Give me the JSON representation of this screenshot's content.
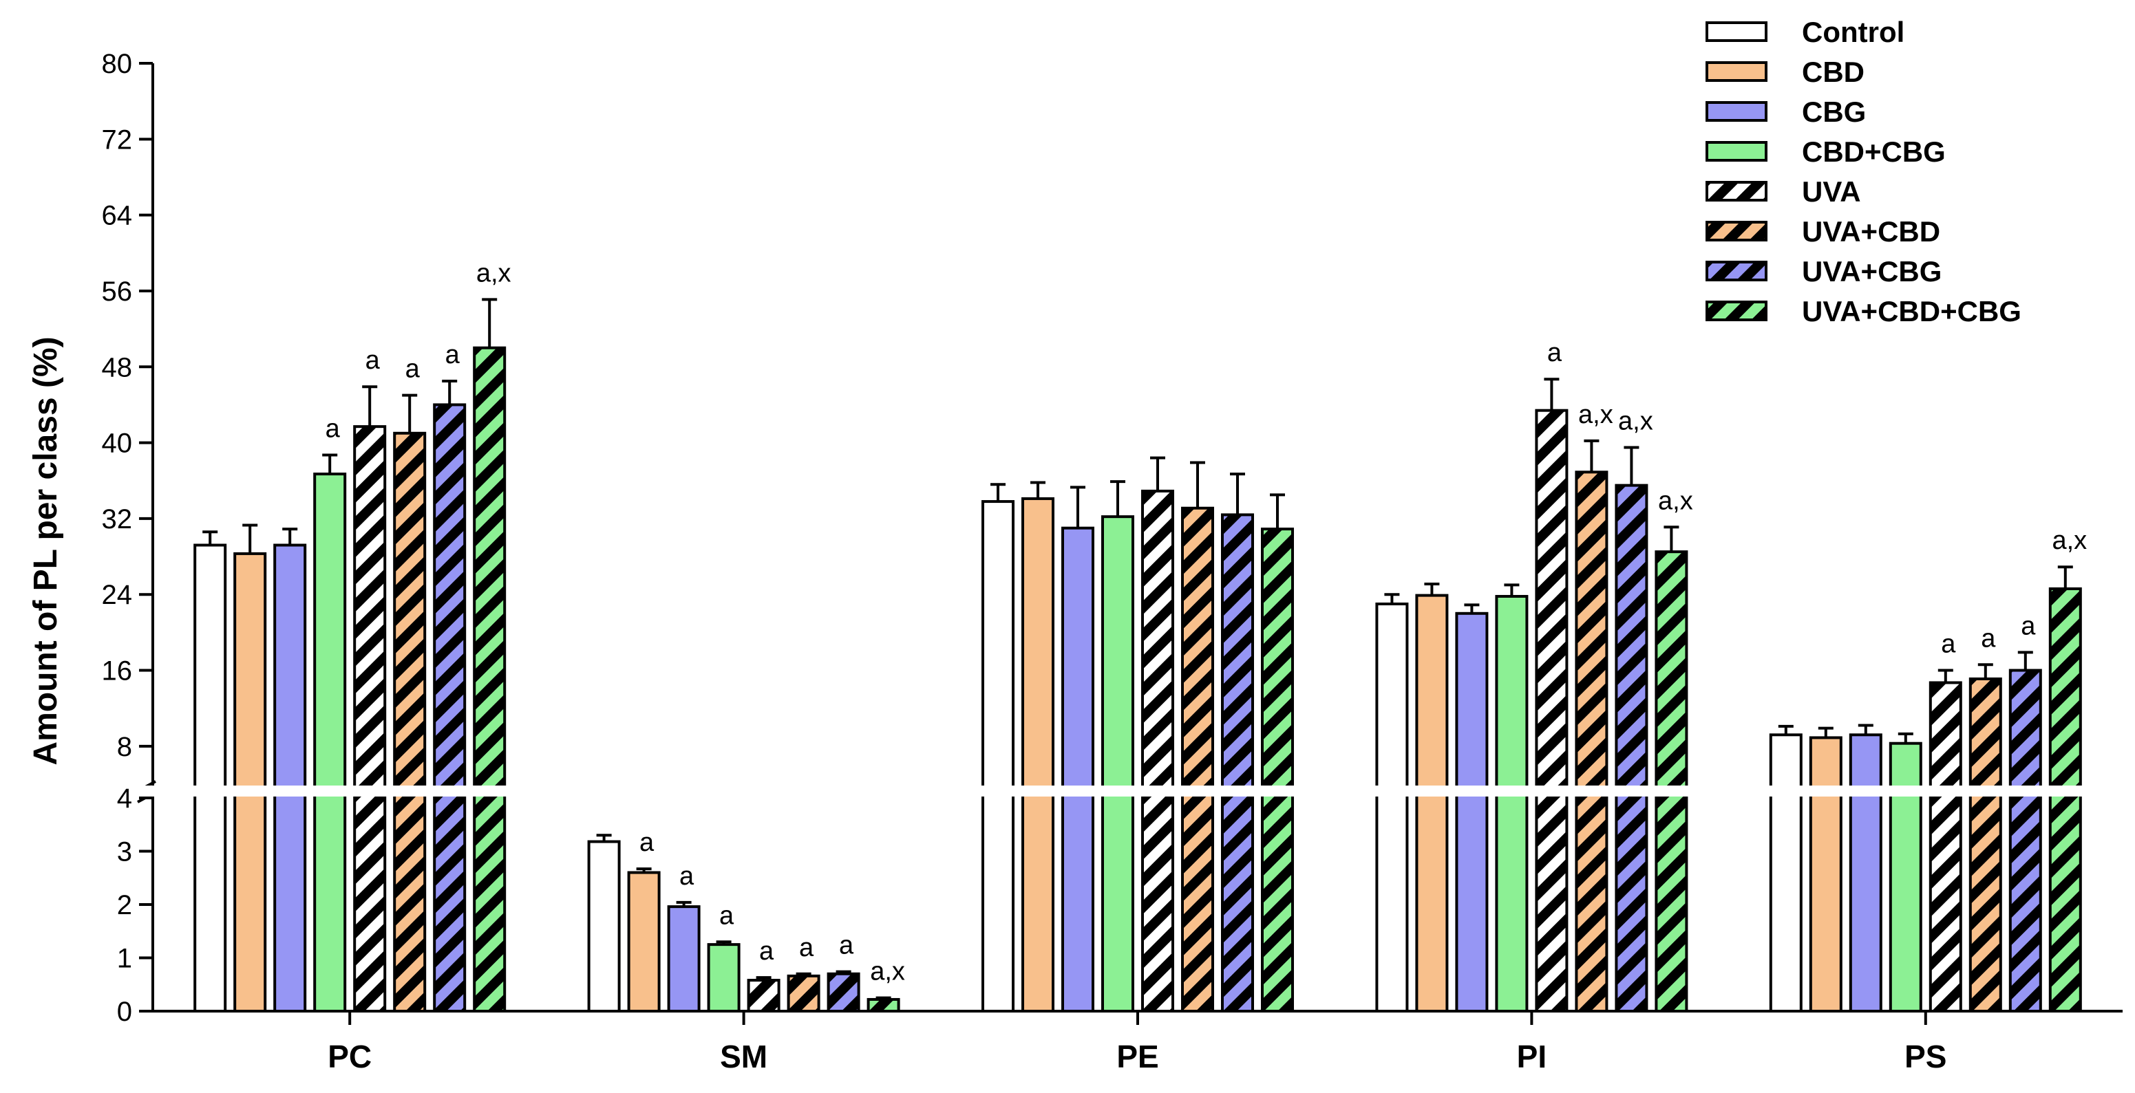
{
  "chart_data": {
    "type": "bar",
    "ylabel": "Amount of PL per class (%)",
    "xlabel": "",
    "title": "",
    "categories": [
      "PC",
      "SM",
      "PE",
      "PI",
      "PS"
    ],
    "axis": {
      "broken": true,
      "lower_range": [
        0,
        4
      ],
      "upper_range": [
        4,
        80
      ],
      "lower_ticks": [
        "0",
        "1",
        "2",
        "3",
        "4"
      ],
      "upper_ticks": [
        "8",
        "16",
        "24",
        "32",
        "40",
        "48",
        "56",
        "64",
        "72",
        "80"
      ]
    },
    "legend_position": "top-right",
    "series": [
      {
        "name": "Control",
        "color": "#FFFFFF",
        "hatched": false,
        "values": [
          29.2,
          3.18,
          33.8,
          23.0,
          9.2
        ],
        "errors": [
          1.4,
          0.12,
          1.8,
          1.0,
          0.9
        ],
        "labels": [
          "",
          "",
          "",
          "",
          ""
        ]
      },
      {
        "name": "CBD",
        "color": "#F8C08C",
        "hatched": false,
        "values": [
          28.3,
          2.6,
          34.1,
          23.9,
          8.9
        ],
        "errors": [
          3.0,
          0.07,
          1.7,
          1.2,
          1.0
        ],
        "labels": [
          "",
          "a",
          "",
          "",
          ""
        ]
      },
      {
        "name": "CBG",
        "color": "#9696F4",
        "hatched": false,
        "values": [
          29.2,
          1.96,
          31.0,
          22.0,
          9.2
        ],
        "errors": [
          1.7,
          0.08,
          4.3,
          0.9,
          1.0
        ],
        "labels": [
          "",
          "a",
          "",
          "",
          ""
        ]
      },
      {
        "name": "CBD+CBG",
        "color": "#8CF094",
        "hatched": false,
        "values": [
          36.7,
          1.25,
          32.2,
          23.8,
          8.3
        ],
        "errors": [
          2.0,
          0.05,
          3.7,
          1.2,
          1.0
        ],
        "labels": [
          "a",
          "a",
          "",
          "",
          ""
        ]
      },
      {
        "name": "UVA",
        "color": "#FFFFFF",
        "hatched": true,
        "values": [
          41.7,
          0.58,
          34.9,
          43.4,
          14.7
        ],
        "errors": [
          4.2,
          0.05,
          3.5,
          3.3,
          1.3
        ],
        "labels": [
          "a",
          "a",
          "",
          "a",
          "a"
        ]
      },
      {
        "name": "UVA+CBD",
        "color": "#F8C08C",
        "hatched": true,
        "values": [
          41.0,
          0.66,
          33.1,
          36.9,
          15.1
        ],
        "errors": [
          4.0,
          0.04,
          4.8,
          3.3,
          1.5
        ],
        "labels": [
          "a",
          "a",
          "",
          "a,x",
          "a"
        ]
      },
      {
        "name": "UVA+CBG",
        "color": "#9696F4",
        "hatched": true,
        "values": [
          44.0,
          0.7,
          32.4,
          35.5,
          16.0
        ],
        "errors": [
          2.5,
          0.04,
          4.3,
          4.0,
          1.9
        ],
        "labels": [
          "a",
          "a",
          "",
          "a,x",
          "a"
        ]
      },
      {
        "name": "UVA+CBD+CBG",
        "color": "#8CF094",
        "hatched": true,
        "values": [
          50.0,
          0.22,
          30.9,
          28.5,
          24.6
        ],
        "errors": [
          5.1,
          0.03,
          3.6,
          2.6,
          2.3
        ],
        "labels": [
          "a,x",
          "a,x",
          "",
          "a,x",
          "a,x"
        ]
      }
    ]
  }
}
